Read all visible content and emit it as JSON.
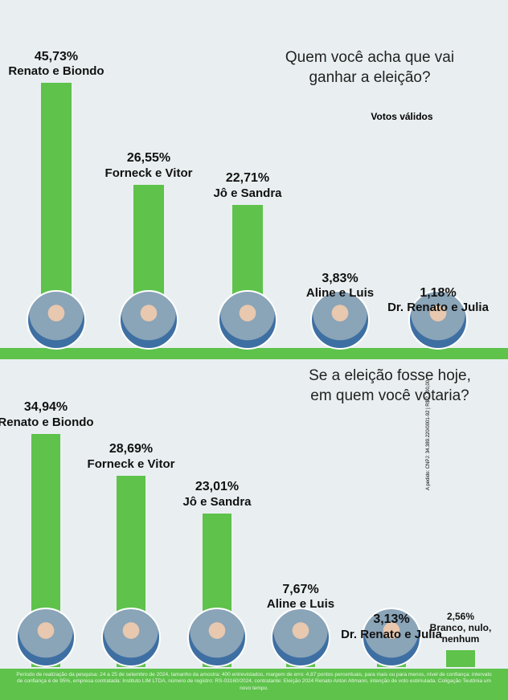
{
  "chart_data": [
    {
      "type": "bar",
      "title": "Quem você acha que vai ganhar a eleição?",
      "subtitle": "Votos válidos",
      "categories": [
        "Renato e Biondo",
        "Forneck e Vitor",
        "Jô e Sandra",
        "Aline e Luis",
        "Dr. Renato e Julia"
      ],
      "values": [
        45.73,
        26.55,
        22.71,
        3.83,
        1.18
      ],
      "value_labels": [
        "45,73%",
        "26,55%",
        "22,71%",
        "3,83%",
        "1,18%"
      ],
      "color": "#5ec24b"
    },
    {
      "type": "bar",
      "title": "Se a eleição fosse hoje, em quem você votaria?",
      "categories": [
        "Renato e Biondo",
        "Forneck e Vitor",
        "Jô e Sandra",
        "Aline e Luis",
        "Dr. Renato e Julia",
        "Branco, nulo, nenhum"
      ],
      "values": [
        34.94,
        28.69,
        23.01,
        7.67,
        3.13,
        2.56
      ],
      "value_labels": [
        "34,94%",
        "28,69%",
        "23,01%",
        "7,67%",
        "3,13%",
        "2,56%"
      ],
      "color": "#5ec24b"
    }
  ],
  "footer": "Período de realização da pesquisa: 24 a 25 de setembro de 2024, tamanho da amostra: 400 entrevistados, margem de erro: 4,87 pontos percentuais, para mais ou para menos, nível de confiança: intervalo de confiança é de 95%, empresa contratada: Instituto LIM LTDA, número de registro: RS-03160/2024, contratante: Eleição 2024 Renato Anton Altmann, intenção de voto estimulada. Coligação Teutônia um novo tempo.",
  "side_note": "A pedido: CNPJ: 34.389.220/0001-92 | R$ 2.700,00"
}
